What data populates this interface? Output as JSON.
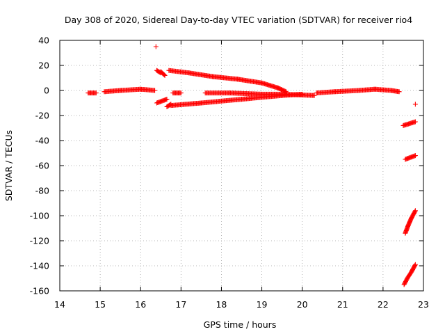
{
  "chart_data": {
    "type": "scatter",
    "title": "Day 308 of 2020, Sidereal Day-to-day VTEC variation (SDTVAR) for receiver rio4",
    "xlabel": "GPS time / hours",
    "ylabel": "SDTVAR / TECUs",
    "xlim": [
      14,
      23
    ],
    "ylim": [
      -160,
      40
    ],
    "xticks": [
      "14",
      "15",
      "16",
      "17",
      "18",
      "19",
      "20",
      "21",
      "22",
      "23"
    ],
    "yticks": [
      "40",
      "20",
      "0",
      "-20",
      "-40",
      "-60",
      "-80",
      "-100",
      "-120",
      "-140",
      "-160"
    ],
    "grid": true,
    "marker": "+",
    "marker_color": "#ff0000",
    "segments": [
      {
        "x": [
          14.7,
          14.9
        ],
        "y": [
          -2,
          -2
        ]
      },
      {
        "x": [
          15.1,
          15.5,
          16.0,
          16.35
        ],
        "y": [
          -1,
          0,
          1,
          0
        ]
      },
      {
        "x": [
          16.4,
          16.5
        ],
        "y": [
          16,
          14
        ]
      },
      {
        "x": [
          16.5,
          16.6
        ],
        "y": [
          15,
          12
        ]
      },
      {
        "x": [
          16.7,
          17.2,
          17.8,
          18.4,
          19.0,
          19.4,
          19.6
        ],
        "y": [
          16,
          14,
          11,
          9,
          6,
          2,
          -1
        ]
      },
      {
        "x": [
          16.4,
          16.65
        ],
        "y": [
          -10,
          -7
        ]
      },
      {
        "x": [
          16.65,
          16.75
        ],
        "y": [
          -13,
          -11
        ]
      },
      {
        "x": [
          16.75,
          17.5,
          18.5,
          19.5,
          20.0
        ],
        "y": [
          -12,
          -10,
          -7,
          -4,
          -3
        ]
      },
      {
        "x": [
          16.8,
          17.0
        ],
        "y": [
          -2,
          -2
        ]
      },
      {
        "x": [
          17.6,
          18.2,
          19.0,
          19.5,
          20.3
        ],
        "y": [
          -2,
          -2,
          -3,
          -3,
          -4
        ]
      },
      {
        "x": [
          20.35,
          20.8,
          21.4,
          21.8,
          22.2,
          22.4
        ],
        "y": [
          -2,
          -1,
          0,
          1,
          0,
          -1
        ]
      },
      {
        "x": [
          22.5,
          22.8
        ],
        "y": [
          -28,
          -25
        ]
      },
      {
        "x": [
          22.55,
          22.8
        ],
        "y": [
          -55,
          -52
        ]
      },
      {
        "x": [
          22.55,
          22.62,
          22.7,
          22.8
        ],
        "y": [
          -114,
          -108,
          -102,
          -96
        ]
      },
      {
        "x": [
          22.52,
          22.6,
          22.7,
          22.8
        ],
        "y": [
          -155,
          -150,
          -145,
          -139
        ]
      }
    ],
    "points": [
      {
        "x": 16.38,
        "y": 35
      },
      {
        "x": 22.8,
        "y": -11
      }
    ]
  }
}
